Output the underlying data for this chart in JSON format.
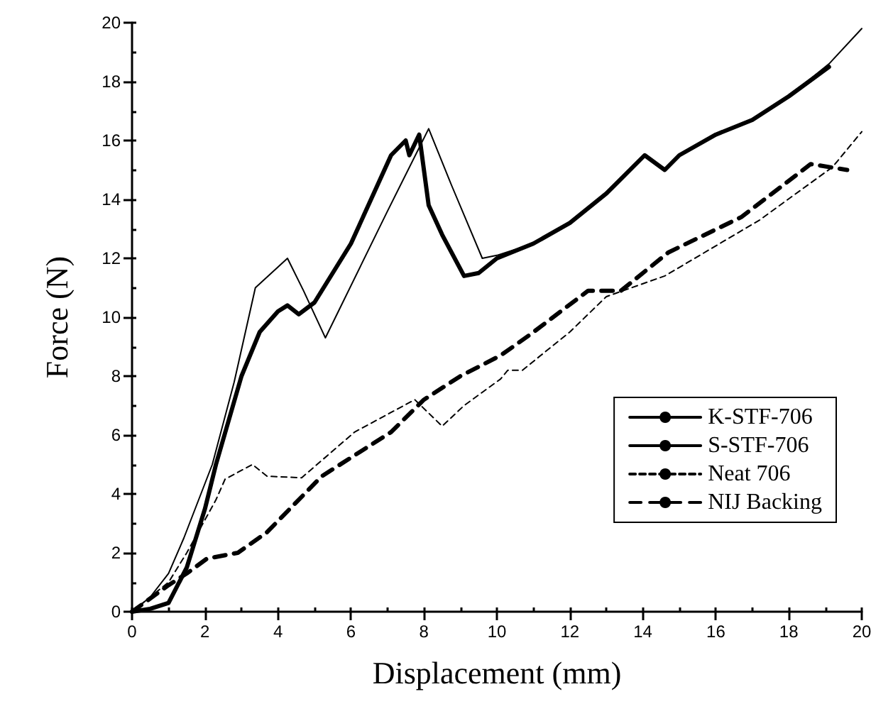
{
  "chart_data": {
    "type": "line",
    "xlabel": "Displacement (mm)",
    "ylabel": "Force (N)",
    "xlim": [
      0,
      20
    ],
    "xticks": [
      0,
      2,
      4,
      6,
      8,
      10,
      12,
      14,
      16,
      18,
      20
    ],
    "ylim": [
      0,
      20
    ],
    "yticks": [
      0,
      2,
      4,
      6,
      8,
      10,
      12,
      14,
      16,
      18,
      20
    ],
    "grid": false,
    "legend": "right",
    "marker": "none",
    "series": [
      {
        "name": "K-STF-706",
        "color": "#000000",
        "line_style": "solid",
        "x": [
          0,
          0.5,
          1,
          1.5,
          2,
          2.3,
          3,
          3.5,
          4,
          4.26,
          4.57,
          5,
          6,
          7.1,
          7.5,
          7.6,
          7.87,
          8.13,
          8.5,
          9.1,
          9.5,
          10,
          11,
          12,
          13,
          14.05,
          14.6,
          15,
          16,
          17,
          18,
          19.1
        ],
        "values": [
          0,
          0.1,
          0.3,
          1.5,
          3.5,
          5,
          8,
          9.5,
          10.2,
          10.4,
          10.1,
          10.5,
          12.5,
          15.5,
          16,
          15.5,
          16.2,
          13.8,
          12.8,
          11.4,
          11.5,
          12,
          12.5,
          13.2,
          14.2,
          15.5,
          15,
          15.5,
          16.2,
          16.7,
          17.5,
          18.5
        ]
      },
      {
        "name": "S-STF-706",
        "color": "#000000",
        "line_style": "solid",
        "x": [
          0,
          0.5,
          1,
          1.42,
          2.2,
          2.8,
          3.38,
          4.26,
          4.7,
          5.3,
          7,
          8.13,
          8.75,
          9.6,
          10,
          11,
          12,
          13,
          14.05,
          14.6,
          15,
          16,
          17,
          18,
          19.1,
          20
        ],
        "values": [
          0,
          0.5,
          1.3,
          2.5,
          5,
          7.8,
          11,
          12,
          10.9,
          9.3,
          13.6,
          16.4,
          14.5,
          12,
          12.1,
          12.5,
          13.2,
          14.2,
          15.5,
          15,
          15.5,
          16.2,
          16.7,
          17.5,
          18.6,
          19.8
        ]
      },
      {
        "name": "Neat 706",
        "color": "#000000",
        "line_style": "dotted",
        "x": [
          0,
          1,
          1.5,
          2.3,
          2.55,
          3.3,
          3.7,
          4.65,
          6.1,
          7.75,
          8.5,
          9.1,
          10.1,
          10.3,
          10.7,
          12,
          13,
          14.6,
          17.2,
          19.2,
          20
        ],
        "values": [
          0,
          1,
          2,
          3.8,
          4.5,
          5,
          4.6,
          4.55,
          6.1,
          7.2,
          6.3,
          7,
          7.9,
          8.2,
          8.2,
          9.5,
          10.7,
          11.4,
          13.3,
          15.1,
          16.3
        ]
      },
      {
        "name": "NIJ Backing",
        "color": "#000000",
        "line_style": "dashed",
        "x": [
          0,
          1,
          1.5,
          2.05,
          2.9,
          3.7,
          5.2,
          7.1,
          8,
          9,
          10.1,
          10.9,
          12.5,
          13.4,
          14.7,
          16.7,
          18.6,
          19.6
        ],
        "values": [
          0,
          0.9,
          1.3,
          1.8,
          2,
          2.7,
          4.6,
          6.1,
          7.2,
          8,
          8.7,
          9.4,
          10.9,
          10.9,
          12.2,
          13.4,
          15.2,
          15
        ]
      }
    ]
  }
}
